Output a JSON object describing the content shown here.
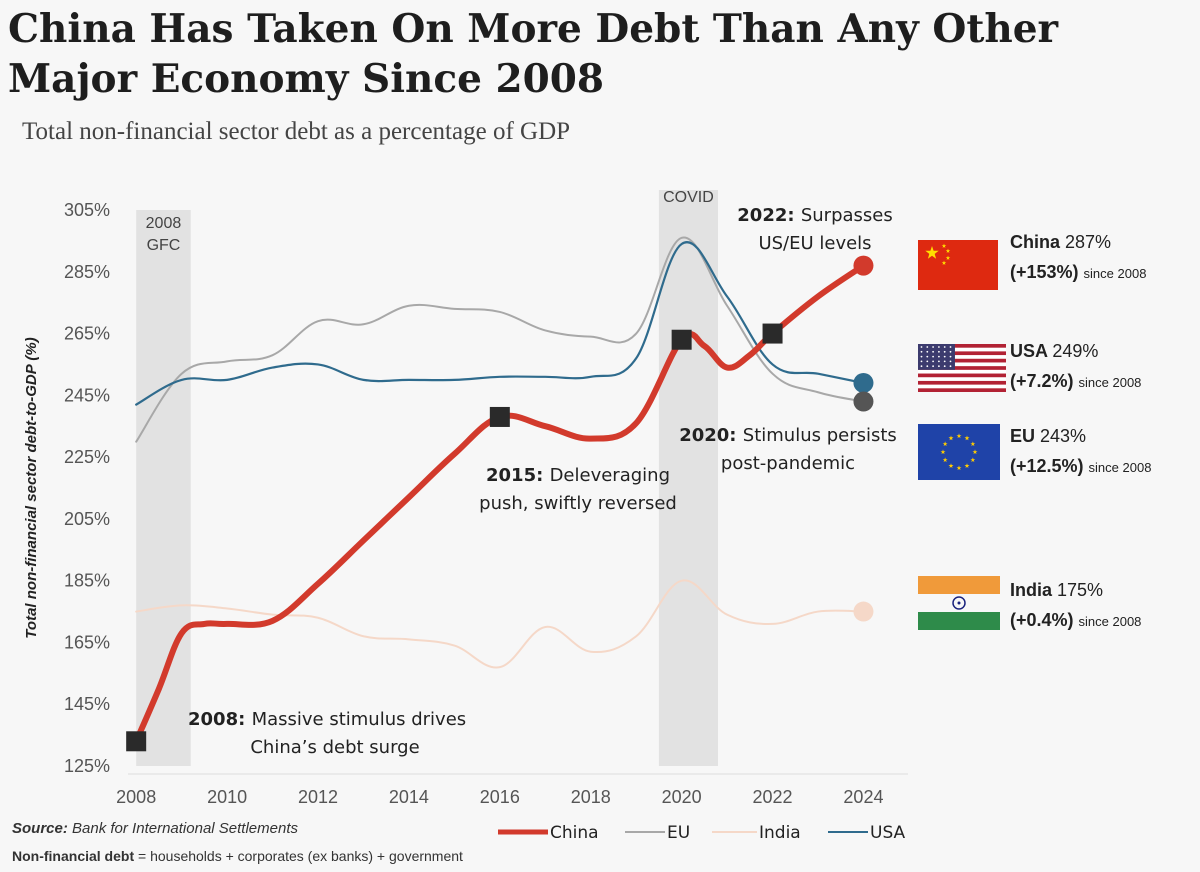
{
  "title": "China Has Taken On More Debt Than Any Other Major Economy Since 2008",
  "subtitle": "Total non-financial sector debt as a percentage of GDP",
  "source_label": "Source:",
  "source_text": "Bank for International Settlements",
  "definition_label": "Non-financial debt",
  "definition_text": "= households + corporates (ex banks) + government",
  "shaded_periods": [
    {
      "label_lines": [
        "2008",
        "GFC"
      ],
      "x_start": 2008,
      "x_end": 2009.2
    },
    {
      "label_lines": [
        "COVID"
      ],
      "x_start": 2019.5,
      "x_end": 2020.8
    }
  ],
  "annotations": [
    {
      "bold": "2008:",
      "lines": [
        "Massive stimulus drives",
        "China’s debt surge"
      ]
    },
    {
      "bold": "2015:",
      "lines": [
        "Deleveraging",
        "push, swiftly reversed"
      ]
    },
    {
      "bold": "2020:",
      "lines": [
        "Stimulus persists",
        "post-pandemic"
      ]
    },
    {
      "bold": "2022:",
      "lines": [
        "Surpasses",
        "US/EU levels"
      ]
    }
  ],
  "side_labels": [
    {
      "name": "China",
      "value": "287%",
      "change": "(+153%)",
      "since": "since 2008",
      "flag": "china-flag"
    },
    {
      "name": "USA",
      "value": "249%",
      "change": "(+7.2%)",
      "since": "since 2008",
      "flag": "usa-flag"
    },
    {
      "name": "EU",
      "value": "243%",
      "change": "(+12.5%)",
      "since": "since 2008",
      "flag": "eu-flag"
    },
    {
      "name": "India",
      "value": "175%",
      "change": "(+0.4%)",
      "since": "since 2008",
      "flag": "india-flag"
    }
  ],
  "colors": {
    "China": "#d23a2c",
    "EU": "#a8a8a8",
    "India": "#f5d8c8",
    "USA": "#2f6b8d",
    "shade": "#e2e2e2",
    "marker": "#2a2a2a"
  },
  "chart_data": {
    "type": "line",
    "title": "China Has Taken On More Debt Than Any Other Major Economy Since 2008",
    "subtitle": "Total non-financial sector debt as a percentage of GDP",
    "xlabel": "",
    "ylabel": "Total non-financial sector debt-to-GDP (%)",
    "xlim": [
      2007.6,
      2025.2
    ],
    "ylim": [
      125,
      305
    ],
    "x_ticks": [
      2008,
      2010,
      2012,
      2014,
      2016,
      2018,
      2020,
      2022,
      2024
    ],
    "y_ticks": [
      125,
      145,
      165,
      185,
      205,
      225,
      245,
      265,
      285,
      305
    ],
    "y_tick_labels": [
      "125%",
      "145%",
      "165%",
      "185%",
      "205%",
      "225%",
      "245%",
      "265%",
      "285%",
      "305%"
    ],
    "grid": false,
    "legend_position": "bottom-right",
    "series": [
      {
        "name": "China",
        "x": [
          2008,
          2008.5,
          2009,
          2009.5,
          2010,
          2011,
          2012,
          2013,
          2014,
          2015,
          2016,
          2017,
          2018,
          2019,
          2020,
          2020.5,
          2021,
          2021.5,
          2022,
          2023,
          2024
        ],
        "values": [
          133,
          150,
          168,
          171,
          171,
          172,
          184,
          198,
          212,
          226,
          238,
          235,
          231,
          236,
          263,
          261,
          254,
          258,
          265,
          277,
          287
        ]
      },
      {
        "name": "EU",
        "x": [
          2008,
          2009,
          2010,
          2011,
          2012,
          2013,
          2014,
          2015,
          2016,
          2017,
          2018,
          2019,
          2020,
          2021,
          2022,
          2023,
          2024
        ],
        "values": [
          230,
          252,
          256,
          258,
          269,
          268,
          274,
          273,
          272,
          266,
          264,
          265,
          296,
          274,
          252,
          246,
          243
        ]
      },
      {
        "name": "India",
        "x": [
          2008,
          2009,
          2010,
          2011,
          2012,
          2013,
          2014,
          2015,
          2016,
          2017,
          2018,
          2019,
          2020,
          2021,
          2022,
          2023,
          2024
        ],
        "values": [
          175,
          177,
          176,
          174,
          173,
          167,
          166,
          164,
          157,
          170,
          162,
          167,
          185,
          174,
          171,
          175,
          175
        ]
      },
      {
        "name": "USA",
        "x": [
          2008,
          2009,
          2010,
          2011,
          2012,
          2013,
          2014,
          2015,
          2016,
          2017,
          2018,
          2019,
          2020,
          2021,
          2022,
          2023,
          2024
        ],
        "values": [
          242,
          250,
          250,
          254,
          255,
          250,
          250,
          250,
          251,
          251,
          251,
          257,
          294,
          277,
          255,
          252,
          249
        ]
      }
    ],
    "markers": [
      {
        "series": "China",
        "x": 2008,
        "y": 133,
        "shape": "square"
      },
      {
        "series": "China",
        "x": 2016,
        "y": 238,
        "shape": "square"
      },
      {
        "series": "China",
        "x": 2020,
        "y": 263,
        "shape": "square"
      },
      {
        "series": "China",
        "x": 2022,
        "y": 265,
        "shape": "square"
      },
      {
        "series": "China",
        "x": 2024,
        "y": 287,
        "shape": "circle"
      },
      {
        "series": "USA",
        "x": 2024,
        "y": 249,
        "shape": "circle"
      },
      {
        "series": "EU",
        "x": 2024,
        "y": 243,
        "shape": "circle"
      },
      {
        "series": "India",
        "x": 2024,
        "y": 175,
        "shape": "circle"
      }
    ]
  }
}
